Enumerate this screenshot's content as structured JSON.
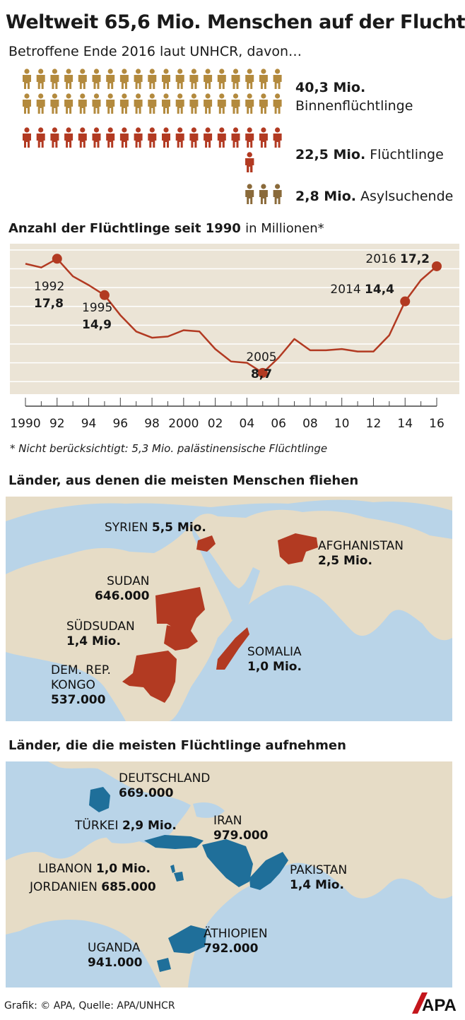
{
  "header": {
    "title": "Weltweit 65,6 Mio. Menschen auf der Flucht",
    "subtitle": "Betroffene Ende 2016 laut UNHCR, davon…"
  },
  "pictogram": {
    "groups": [
      {
        "value": "40,3 Mio.",
        "label": "Binnenflüchtlinge",
        "color": "#b38a3e"
      },
      {
        "value": "22,5 Mio.",
        "label": "Flüchtlinge",
        "color": "#b23a22"
      },
      {
        "value": "2,8 Mio.",
        "label": "Asylsuchende",
        "color": "#8a6a3a"
      }
    ]
  },
  "chart_title": {
    "bold": "Anzahl der Flüchtlinge seit 1990",
    "rest": "in Millionen*"
  },
  "chart_data": {
    "type": "line",
    "x": [
      1990,
      1991,
      1992,
      1993,
      1994,
      1995,
      1996,
      1997,
      1998,
      1999,
      2000,
      2001,
      2002,
      2003,
      2004,
      2005,
      2006,
      2007,
      2008,
      2009,
      2010,
      2011,
      2012,
      2013,
      2014,
      2015,
      2016
    ],
    "y": [
      17.4,
      17.1,
      17.8,
      16.4,
      15.7,
      14.9,
      13.3,
      12.0,
      11.5,
      11.6,
      12.1,
      12.0,
      10.6,
      9.6,
      9.5,
      8.7,
      9.9,
      11.4,
      10.5,
      10.5,
      10.6,
      10.4,
      10.4,
      11.7,
      14.4,
      16.1,
      17.2
    ],
    "highlights": [
      {
        "x": 1992,
        "year": "1992",
        "value": "17,8"
      },
      {
        "x": 1995,
        "year": "1995",
        "value": "14,9"
      },
      {
        "x": 2005,
        "year": "2005",
        "value": "8,7"
      },
      {
        "x": 2014,
        "year": "2014",
        "value": "14,4"
      },
      {
        "x": 2016,
        "year": "2016",
        "value": "17,2"
      }
    ],
    "x_tick_labels": [
      "1990",
      "92",
      "94",
      "96",
      "98",
      "2000",
      "02",
      "04",
      "06",
      "08",
      "10",
      "12",
      "14",
      "16"
    ],
    "ylim": [
      7,
      19
    ],
    "line_color": "#b23a22",
    "background": "#ebe4d6",
    "grid": true
  },
  "note": "* Nicht berücksichtigt:  5,3 Mio. palästinensische Flüchtlinge",
  "map_origin": {
    "title": "Länder, aus denen die meisten Menschen fliehen",
    "highlight_color": "#b23a22",
    "countries": [
      {
        "name": "SYRIEN",
        "value": "5,5 Mio."
      },
      {
        "name": "AFGHANISTAN",
        "value": "2,5 Mio."
      },
      {
        "name": "SUDAN",
        "value": "646.000"
      },
      {
        "name": "SÜDSUDAN",
        "value": "1,4 Mio."
      },
      {
        "name": "SOMALIA",
        "value": "1,0 Mio."
      },
      {
        "name": "DEM. REP.",
        "name2": "KONGO",
        "value": "537.000"
      }
    ]
  },
  "map_host": {
    "title": "Länder, die die meisten Flüchtlinge aufnehmen",
    "highlight_color": "#1f6f9a",
    "countries": [
      {
        "name": "DEUTSCHLAND",
        "value": "669.000"
      },
      {
        "name": "TÜRKEI",
        "value": "2,9 Mio."
      },
      {
        "name": "IRAN",
        "value": "979.000"
      },
      {
        "name": "LIBANON",
        "value": "1,0 Mio."
      },
      {
        "name": "JORDANIEN",
        "value": "685.000"
      },
      {
        "name": "PAKISTAN",
        "value": "1,4 Mio."
      },
      {
        "name": "UGANDA",
        "value": "941.000"
      },
      {
        "name": "ÄTHIOPIEN",
        "value": "792.000"
      }
    ]
  },
  "footer": {
    "source": "Grafik: © APA, Quelle: APA/UNHCR",
    "logo": "APA"
  }
}
